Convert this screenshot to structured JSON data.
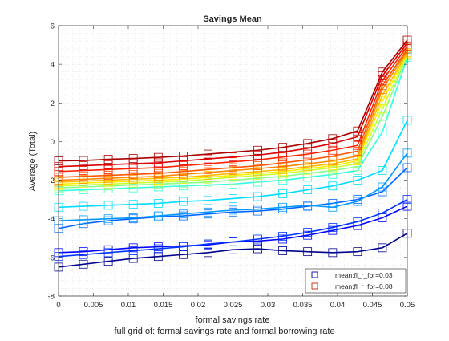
{
  "chart_data": {
    "type": "line",
    "title": "Savings Mean",
    "xlabel": "formal savings rate",
    "ylabel": "Average (Total)",
    "xlim": [
      0,
      0.05
    ],
    "ylim": [
      -8,
      6
    ],
    "xticks": [
      0,
      0.005,
      0.01,
      0.015,
      0.02,
      0.025,
      0.03,
      0.035,
      0.04,
      0.045,
      0.05
    ],
    "xtick_labels": [
      "0",
      "0.005",
      "0.01",
      "0.015",
      "0.02",
      "0.025",
      "0.03",
      "0.035",
      "0.04",
      "0.045",
      "0.05"
    ],
    "yticks": [
      -8,
      -6,
      -4,
      -2,
      0,
      2,
      4,
      6
    ],
    "ytick_labels": [
      "-8",
      "-6",
      "-4",
      "-2",
      "0",
      "2",
      "4",
      "6"
    ],
    "grid": "minor-dotted",
    "marker": "square",
    "legend_position": "bottom-right",
    "legend": [
      {
        "label": "mean;fl_r_fbr=0.03",
        "color": "#0000bb"
      },
      {
        "label": "mean;fl_r_fbr=0.08",
        "color": "#cc2200"
      }
    ],
    "footer": "full grid of: formal savings rate and formal borrowing rate",
    "x": [
      0,
      0.00357,
      0.00714,
      0.01071,
      0.01429,
      0.01786,
      0.02143,
      0.025,
      0.02857,
      0.03214,
      0.03571,
      0.03929,
      0.04286,
      0.04643,
      0.05
    ],
    "series": [
      {
        "color": "#00008f",
        "values": [
          -6.5,
          -6.35,
          -6.2,
          -6.05,
          -5.95,
          -5.85,
          -5.75,
          -5.6,
          -5.55,
          -5.65,
          -5.7,
          -5.75,
          -5.7,
          -5.5,
          -4.75
        ]
      },
      {
        "color": "#0000ff",
        "values": [
          -5.75,
          -5.7,
          -5.6,
          -5.5,
          -5.45,
          -5.4,
          -5.35,
          -5.2,
          -5.15,
          -5.05,
          -4.85,
          -4.6,
          -4.35,
          -3.95,
          -3.35
        ]
      },
      {
        "color": "#0033ff",
        "values": [
          -5.95,
          -5.85,
          -5.75,
          -5.65,
          -5.55,
          -5.45,
          -5.3,
          -5.2,
          -5.05,
          -4.9,
          -4.7,
          -4.45,
          -4.15,
          -3.7,
          -3.0
        ]
      },
      {
        "color": "#0066ff",
        "values": [
          -4.5,
          -4.25,
          -4.1,
          -4.0,
          -3.9,
          -3.85,
          -3.75,
          -3.65,
          -3.6,
          -3.5,
          -3.35,
          -3.2,
          -3.0,
          -2.6,
          -1.35
        ]
      },
      {
        "color": "#0099ff",
        "values": [
          -4.1,
          -4.05,
          -4.0,
          -3.95,
          -3.85,
          -3.75,
          -3.65,
          -3.55,
          -3.5,
          -3.4,
          -3.3,
          -3.4,
          -3.1,
          -2.35,
          -0.6
        ]
      },
      {
        "color": "#00ddff",
        "values": [
          -3.4,
          -3.35,
          -3.3,
          -3.25,
          -3.2,
          -3.1,
          -3.05,
          -2.95,
          -2.85,
          -2.7,
          -2.5,
          -2.3,
          -2.0,
          -1.5,
          1.1
        ]
      },
      {
        "color": "#33ffdd",
        "values": [
          -2.55,
          -2.5,
          -2.45,
          -2.4,
          -2.35,
          -2.3,
          -2.25,
          -2.2,
          -2.1,
          -2.0,
          -1.85,
          -1.7,
          -1.5,
          0.5,
          4.35
        ]
      },
      {
        "color": "#88ff88",
        "values": [
          -2.4,
          -2.35,
          -2.3,
          -2.25,
          -2.2,
          -2.15,
          -2.1,
          -2.0,
          -1.9,
          -1.8,
          -1.65,
          -1.5,
          -1.3,
          1.3,
          4.45
        ]
      },
      {
        "color": "#ccff33",
        "values": [
          -2.3,
          -2.25,
          -2.2,
          -2.15,
          -2.1,
          -2.05,
          -1.95,
          -1.85,
          -1.75,
          -1.65,
          -1.5,
          -1.35,
          -1.15,
          1.7,
          4.5
        ]
      },
      {
        "color": "#ffee00",
        "values": [
          -2.2,
          -2.15,
          -2.1,
          -2.05,
          -2.0,
          -1.95,
          -1.85,
          -1.75,
          -1.65,
          -1.55,
          -1.4,
          -1.25,
          -1.0,
          2.1,
          4.55
        ]
      },
      {
        "color": "#ffbb00",
        "values": [
          -2.1,
          -2.05,
          -2.0,
          -1.95,
          -1.9,
          -1.85,
          -1.75,
          -1.65,
          -1.55,
          -1.45,
          -1.3,
          -1.15,
          -0.9,
          2.4,
          4.6
        ]
      },
      {
        "color": "#ff8800",
        "values": [
          -2.0,
          -1.95,
          -1.9,
          -1.85,
          -1.8,
          -1.7,
          -1.6,
          -1.5,
          -1.4,
          -1.3,
          -1.15,
          -1.0,
          -0.75,
          2.7,
          4.7
        ]
      },
      {
        "color": "#ff5500",
        "values": [
          -1.85,
          -1.8,
          -1.75,
          -1.7,
          -1.65,
          -1.55,
          -1.45,
          -1.35,
          -1.25,
          -1.1,
          -0.95,
          -0.75,
          -0.5,
          2.9,
          4.8
        ]
      },
      {
        "color": "#ff2200",
        "values": [
          -1.55,
          -1.5,
          -1.45,
          -1.4,
          -1.35,
          -1.25,
          -1.15,
          -1.05,
          -0.95,
          -0.8,
          -0.65,
          -0.45,
          -0.2,
          3.15,
          4.95
        ]
      },
      {
        "color": "#dd0000",
        "values": [
          -1.3,
          -1.25,
          -1.2,
          -1.15,
          -1.1,
          -1.0,
          -0.9,
          -0.8,
          -0.7,
          -0.55,
          -0.35,
          -0.1,
          0.25,
          3.4,
          5.1
        ]
      },
      {
        "color": "#aa0000",
        "values": [
          -1.0,
          -0.98,
          -0.92,
          -0.88,
          -0.82,
          -0.75,
          -0.65,
          -0.55,
          -0.45,
          -0.3,
          -0.1,
          0.15,
          0.55,
          3.6,
          5.25
        ]
      }
    ]
  }
}
